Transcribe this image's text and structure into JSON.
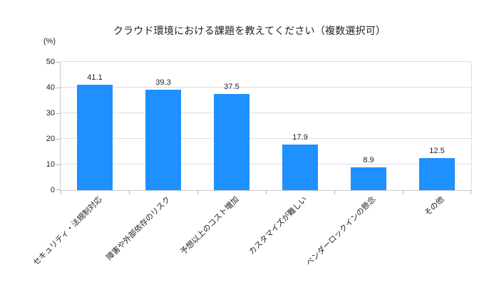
{
  "chart_data": {
    "type": "bar",
    "title": "クラウド環境における課題を教えてください（複数選択可）",
    "categories": [
      "セキュリティ・法規制対応",
      "障害や外部依存のリスク",
      "予想以上のコスト増加",
      "カスタマイズが難しい",
      "ベンダーロックインの懸念",
      "その他"
    ],
    "values": [
      41.1,
      39.3,
      37.5,
      17.9,
      8.9,
      12.5
    ],
    "value_labels": [
      "41.1",
      "39.3",
      "37.5",
      "17.9",
      "8.9",
      "12.5"
    ],
    "xlabel": "",
    "ylabel": "(%)",
    "ylim": [
      0,
      50
    ],
    "yticks": [
      0,
      10,
      20,
      30,
      40,
      50
    ],
    "grid": true,
    "legend": false,
    "x_label_rotation_deg": 45,
    "bar_color": "#1E90FF",
    "grid_color": "#DEDEDE",
    "axis_color": "#C9C9C9",
    "tick_color": "#B3B3B3",
    "text_color": "#1F1F1F",
    "background_color": "#FFFFFF"
  }
}
